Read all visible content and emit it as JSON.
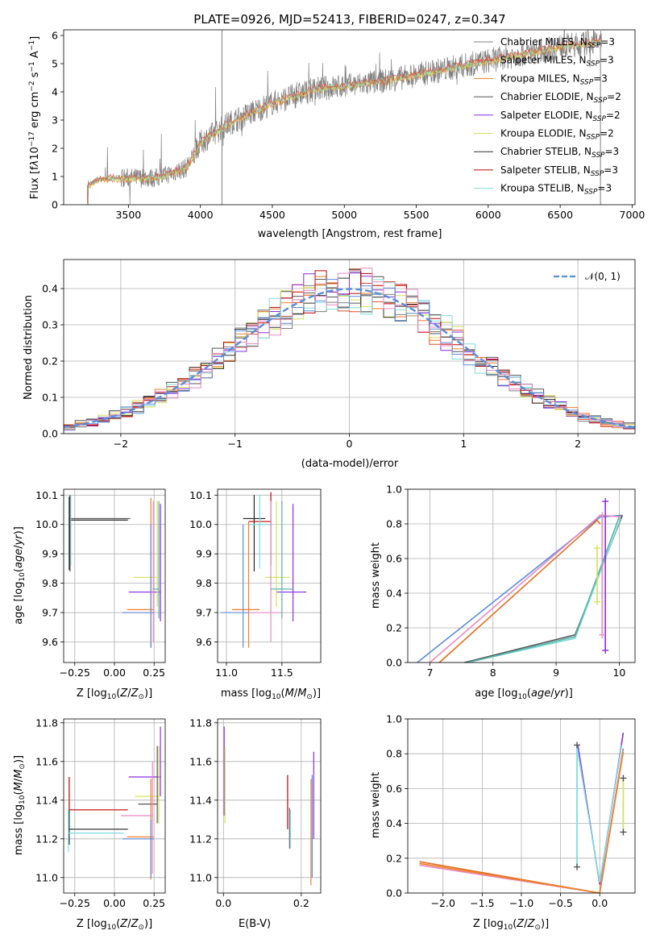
{
  "figure_title": "PLATE=0926, MJD=52413, FIBERID=0247, z=0.347",
  "colors": {
    "Chabrier MILES": "#808080",
    "Salpeter MILES": "#e34a33",
    "Kroupa MILES": "#f07f2a",
    "Chabrier ELODIE": "#555555",
    "Salpeter ELODIE": "#8a2be2",
    "Kroupa ELODIE": "#d4e157",
    "Chabrier STELIB": "#333333",
    "Salpeter STELIB": "#c00000",
    "Kroupa STELIB": "#7fdcdc",
    "blue": "#5b8dd9",
    "pink": "#e88ac0",
    "orange": "#e07020",
    "teal": "#5ab4a8"
  },
  "chart_data": [
    {
      "id": "spectrum",
      "type": "line",
      "title": "PLATE=0926, MJD=52413, FIBERID=0247, z=0.347",
      "xlabel": "wavelength [Angstrom, rest frame]",
      "ylabel": "Flux [f_λ 10^-17 erg cm^-2 s^-1 A^-1]",
      "xlim": [
        3050,
        7020
      ],
      "ylim": [
        0,
        6.2
      ],
      "xticks": [
        "3500",
        "4000",
        "4500",
        "5000",
        "5500",
        "6000",
        "6500",
        "7000"
      ],
      "yticks": [
        "0",
        "1",
        "2",
        "3",
        "4",
        "5",
        "6"
      ],
      "legend_position": "upper-right",
      "series": [
        {
          "name": "Chabrier MILES, N_SSP=3"
        },
        {
          "name": "Salpeter MILES, N_SSP=3"
        },
        {
          "name": "Kroupa MILES, N_SSP=3"
        },
        {
          "name": "Chabrier ELODIE, N_SSP=2"
        },
        {
          "name": "Salpeter ELODIE, N_SSP=2"
        },
        {
          "name": "Kroupa ELODIE, N_SSP=2"
        },
        {
          "name": "Chabrier STELIB, N_SSP=3"
        },
        {
          "name": "Salpeter STELIB, N_SSP=3"
        },
        {
          "name": "Kroupa STELIB, N_SSP=3"
        }
      ],
      "continuum": {
        "x": [
          3220,
          3300,
          3500,
          3700,
          3900,
          3950,
          4000,
          4200,
          4500,
          4800,
          5000,
          5300,
          5600,
          5900,
          6200,
          6500,
          6800
        ],
        "y": [
          0.7,
          0.9,
          0.95,
          0.95,
          1.3,
          1.7,
          2.2,
          2.9,
          3.6,
          4.1,
          4.2,
          4.4,
          4.7,
          5.0,
          5.3,
          5.6,
          5.8
        ]
      }
    },
    {
      "id": "residuals",
      "type": "line",
      "xlabel": "(data-model)/error",
      "ylabel": "Normed distribution",
      "xlim": [
        -2.5,
        2.5
      ],
      "ylim": [
        0,
        0.48
      ],
      "xticks": [
        "−2",
        "−1",
        "0",
        "1",
        "2"
      ],
      "yticks": [
        "0.0",
        "0.1",
        "0.2",
        "0.3",
        "0.4"
      ],
      "legend": "𝒩(0, 1)",
      "legend_position": "upper-right"
    },
    {
      "id": "age-vs-Z",
      "type": "scatter",
      "xlabel": "Z [log10(Z/Z⊙)]",
      "ylabel": "age [log10(age/yr)]",
      "xlim": [
        -0.32,
        0.32
      ],
      "ylim": [
        9.53,
        10.12
      ],
      "xticks": [
        "−0.25",
        "0.00",
        "0.25"
      ],
      "yticks": [
        "9.6",
        "9.7",
        "9.8",
        "9.9",
        "10.0",
        "10.1"
      ]
    },
    {
      "id": "age-vs-mass",
      "type": "scatter",
      "xlabel": "mass [log10(M/M⊙)]",
      "xlim": [
        10.92,
        11.85
      ],
      "ylim": [
        9.53,
        10.12
      ],
      "xticks": [
        "11.0",
        "11.5"
      ],
      "yticks": [
        "9.6",
        "9.7",
        "9.8",
        "9.9",
        "10.0",
        "10.1"
      ]
    },
    {
      "id": "massweight-vs-age",
      "type": "line",
      "xlabel": "age [log10(age/yr)]",
      "ylabel": "mass weight",
      "xlim": [
        6.65,
        10.25
      ],
      "ylim": [
        0,
        1.0
      ],
      "xticks": [
        "7",
        "8",
        "9",
        "10"
      ],
      "yticks": [
        "0.0",
        "0.2",
        "0.4",
        "0.6",
        "0.8",
        "1.0"
      ]
    },
    {
      "id": "mass-vs-Z",
      "type": "scatter",
      "xlabel": "Z [log10(Z/Z⊙)]",
      "ylabel": "mass [log10(M/M⊙)]",
      "xlim": [
        -0.32,
        0.32
      ],
      "ylim": [
        10.92,
        11.82
      ],
      "xticks": [
        "−0.25",
        "0.00",
        "0.25"
      ],
      "yticks": [
        "11.0",
        "11.2",
        "11.4",
        "11.6",
        "11.8"
      ]
    },
    {
      "id": "mass-vs-ebv",
      "type": "scatter",
      "xlabel": "E(B-V)",
      "xlim": [
        -0.015,
        0.25
      ],
      "ylim": [
        10.92,
        11.82
      ],
      "xticks": [
        "0.0",
        "0.2"
      ],
      "yticks": [
        "11.0",
        "11.2",
        "11.4",
        "11.6",
        "11.8"
      ]
    },
    {
      "id": "massweight-vs-Z",
      "type": "line",
      "xlabel": "Z [log10(Z/Z⊙)]",
      "ylabel": "mass weight",
      "xlim": [
        -2.45,
        0.45
      ],
      "ylim": [
        0,
        1.0
      ],
      "xticks": [
        "−2.0",
        "−1.5",
        "−1.0",
        "−0.5",
        "0.0"
      ],
      "yticks": [
        "0.0",
        "0.2",
        "0.4",
        "0.6",
        "0.8",
        "1.0"
      ]
    }
  ]
}
